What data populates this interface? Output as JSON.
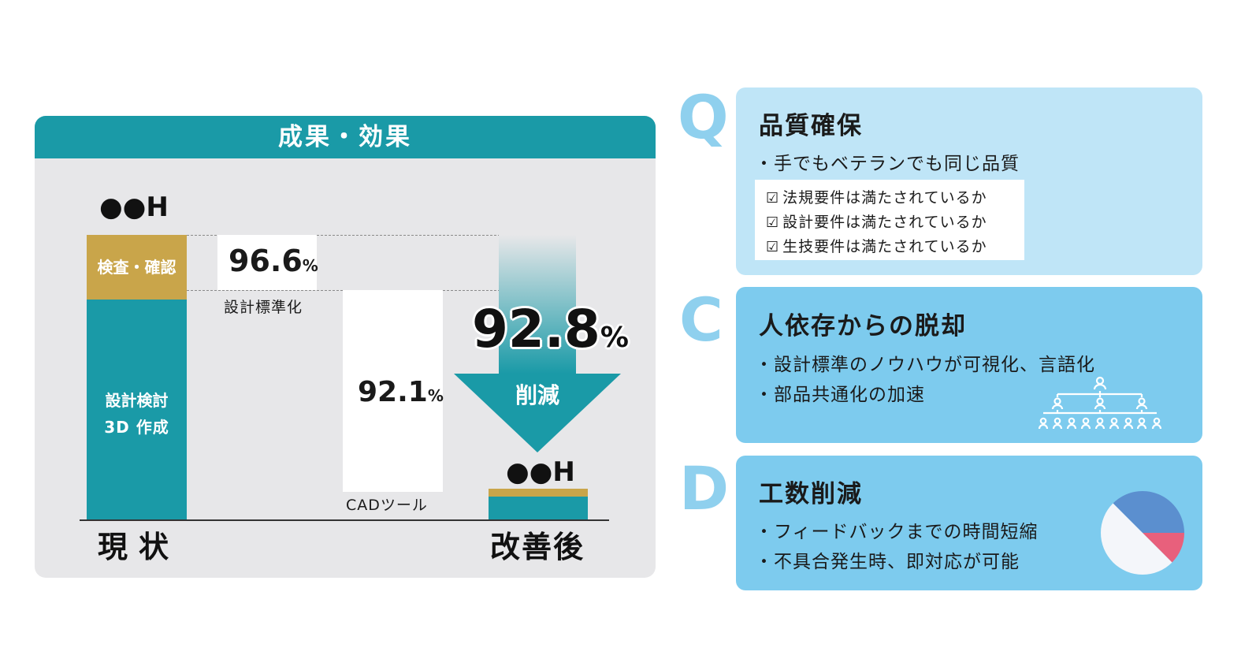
{
  "left_panel": {
    "header": "成果・効果",
    "before_hours": "●●H",
    "before_bar_top_label": "検査・確認",
    "before_bar_main_line1": "設計検討",
    "before_bar_main_line2": "3D 作成",
    "standardization_value": "96.6",
    "standardization_unit": "%",
    "standardization_label": "設計標準化",
    "cad_value": "92.1",
    "cad_unit": "%",
    "cad_label": "CADツール",
    "reduction_value": "92.8",
    "reduction_unit": "%",
    "reduction_label": "削減",
    "after_hours": "●●H",
    "label_before": "現状",
    "label_after": "改善後"
  },
  "cards": {
    "q": {
      "letter": "Q",
      "title": "品質確保",
      "bullet1": "・手でもベテランでも同じ品質",
      "checks": [
        "法規要件は満たされているか",
        "設計要件は満たされているか",
        "生技要件は満たされているか"
      ],
      "check_glyph": "☑"
    },
    "c": {
      "letter": "C",
      "title": "人依存からの脱却",
      "bullet1": "・設計標準のノウハウが可視化、言語化",
      "bullet2": "・部品共通化の加速"
    },
    "d": {
      "letter": "D",
      "title": "工数削減",
      "bullet1": "・フィードバックまでの時間短縮",
      "bullet2": "・不具合発生時、即対応が可能"
    }
  },
  "colors": {
    "teal": "#1a9aa7",
    "gold": "#c9a54a",
    "light_blue": "#bfe5f7",
    "sky_blue": "#7dcbee",
    "letter_blue": "#8fd0ee",
    "pie_blue": "#5b8fcf",
    "pie_pink": "#e8607c",
    "pie_white": "#f4f6fa"
  },
  "pie": {
    "slices": [
      0.375,
      0.125,
      0.5
    ]
  }
}
